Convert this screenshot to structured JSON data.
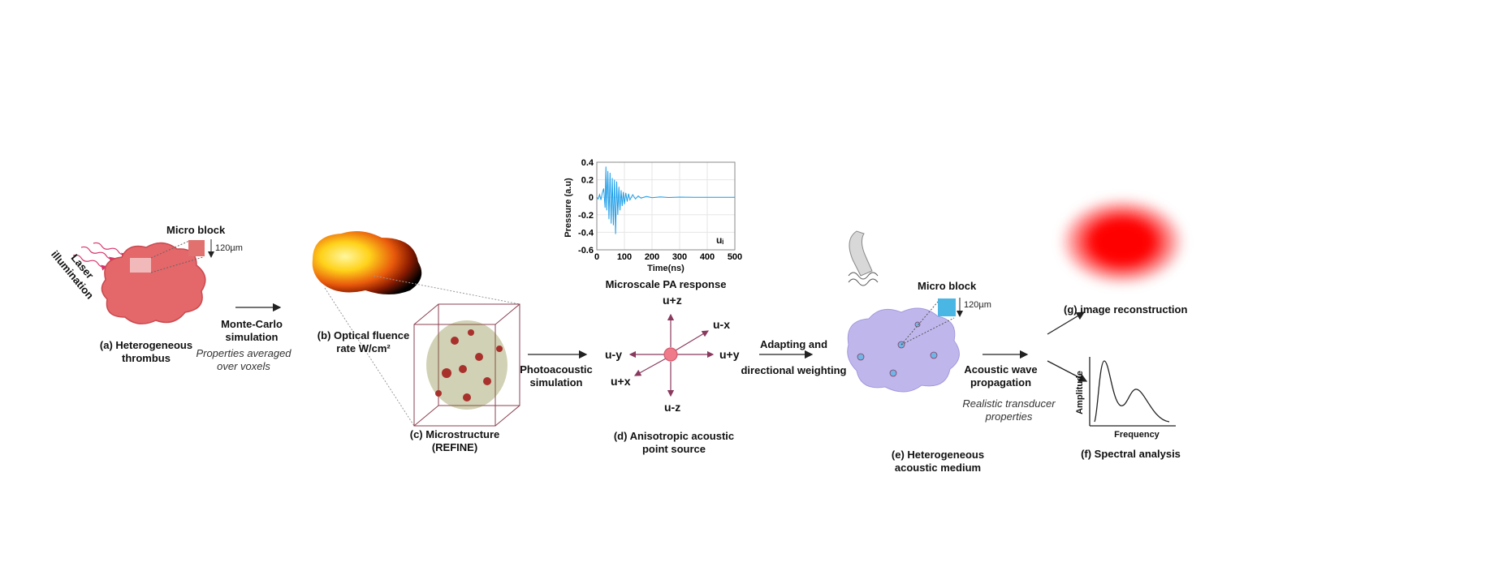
{
  "panel_a": {
    "laser_line1": "Laser",
    "laser_line2": "illumination",
    "micro_block": "Micro block",
    "size": "120µm",
    "caption_line1": "(a) Heterogeneous",
    "caption_line2": "thrombus"
  },
  "step1": {
    "line1": "Monte-Carlo",
    "line2": "simulation",
    "note1": "Properties averaged",
    "note2": "over voxels"
  },
  "panel_b": {
    "caption_line1": "(b) Optical fluence",
    "caption_line2": "rate W/cm²"
  },
  "panel_c": {
    "caption_line1": "(c) Microstructure",
    "caption_line2": "(REFINE)"
  },
  "step2": {
    "line1": "Photoacoustic",
    "line2": "simulation"
  },
  "chart_data": {
    "type": "line",
    "title": "Microscale PA response",
    "xlabel": "Time(ns)",
    "ylabel": "Pressure (a.u)",
    "annotation": "uᵢ",
    "xlim": [
      0,
      500
    ],
    "ylim": [
      -0.6,
      0.4
    ],
    "xticks": [
      0,
      100,
      200,
      300,
      400,
      500
    ],
    "yticks": [
      0.4,
      0.2,
      0,
      -0.2,
      -0.4,
      -0.6
    ],
    "grid": true,
    "color": "#1e9ee8",
    "x": [
      0,
      5,
      10,
      15,
      20,
      25,
      30,
      33,
      36,
      40,
      44,
      48,
      52,
      56,
      60,
      64,
      68,
      72,
      76,
      80,
      84,
      88,
      92,
      96,
      100,
      105,
      110,
      115,
      120,
      130,
      140,
      150,
      160,
      180,
      200,
      230,
      260,
      300,
      350,
      400,
      450,
      500
    ],
    "y": [
      0,
      -0.02,
      0.03,
      -0.03,
      0.05,
      0.1,
      -0.12,
      0.35,
      -0.15,
      0.3,
      -0.25,
      0.28,
      -0.3,
      0.22,
      -0.32,
      0.2,
      -0.42,
      0.18,
      -0.2,
      0.12,
      -0.15,
      0.08,
      -0.1,
      0.06,
      -0.08,
      0.05,
      -0.05,
      0.04,
      -0.03,
      0.03,
      -0.02,
      0.015,
      -0.01,
      0.01,
      -0.005,
      0.004,
      -0.003,
      0.002,
      0,
      0,
      0,
      0
    ]
  },
  "panel_d": {
    "u_pz": "u+z",
    "u_mx": "u-x",
    "u_my": "u-y",
    "u_py": "u+y",
    "u_px": "u+x",
    "u_mz": "u-z",
    "caption_line1": "(d) Anisotropic acoustic",
    "caption_line2": "point source"
  },
  "step3": {
    "line1": "Adapting and",
    "line2": "directional weighting"
  },
  "panel_e": {
    "micro_block": "Micro block",
    "size": "120µm",
    "caption_line1": "(e) Heterogeneous",
    "caption_line2": "acoustic medium"
  },
  "step4": {
    "line1": "Acoustic wave",
    "line2": "propagation",
    "note1": "Realistic transducer",
    "note2": "properties"
  },
  "panel_g": {
    "caption": "(g) image reconstruction"
  },
  "panel_f": {
    "ylabel": "Amplitude",
    "xlabel": "Frequency",
    "caption": "(f) Spectral analysis"
  }
}
